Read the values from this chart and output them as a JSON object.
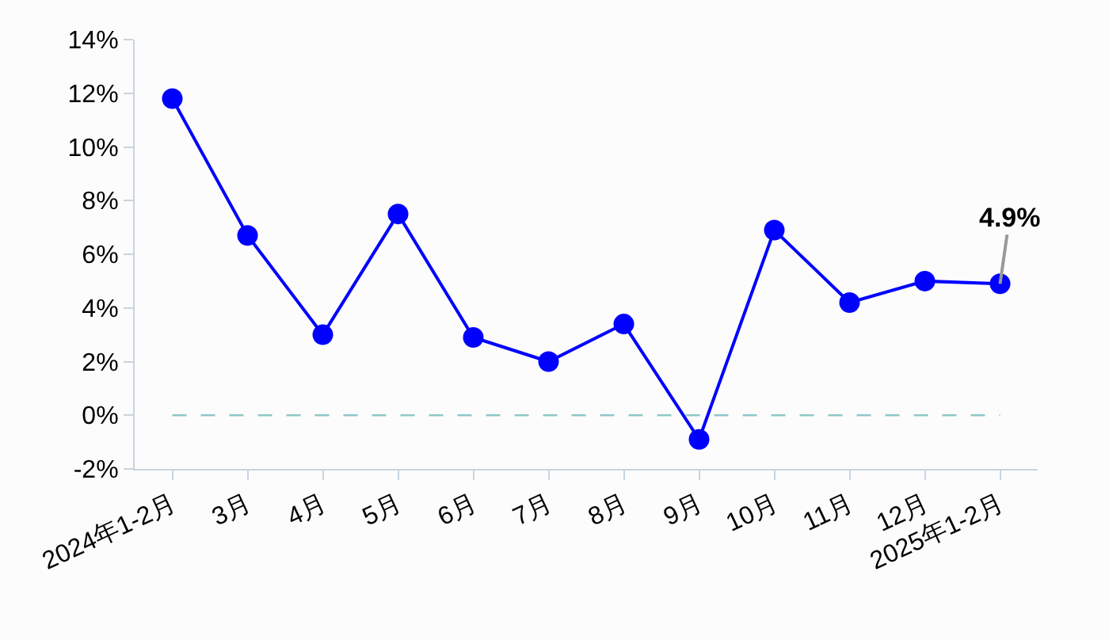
{
  "chart_data": {
    "type": "line",
    "categories": [
      "2024年1-2月",
      "3月",
      "4月",
      "5月",
      "6月",
      "7月",
      "8月",
      "9月",
      "10月",
      "11月",
      "12月",
      "2025年1-2月"
    ],
    "series": [
      {
        "color": "#0000ff",
        "values": [
          11.8,
          6.7,
          3.0,
          7.5,
          2.9,
          2.0,
          3.4,
          -0.9,
          6.9,
          4.2,
          5.0,
          4.9
        ]
      }
    ],
    "ylim": [
      -2,
      14
    ],
    "yticks": [
      {
        "value": -2,
        "label": "-2%"
      },
      {
        "value": 0,
        "label": "0%"
      },
      {
        "value": 2,
        "label": "2%"
      },
      {
        "value": 4,
        "label": "4%"
      },
      {
        "value": 6,
        "label": "6%"
      },
      {
        "value": 8,
        "label": "8%"
      },
      {
        "value": 10,
        "label": "10%"
      },
      {
        "value": 12,
        "label": "12%"
      },
      {
        "value": 14,
        "label": "14%"
      }
    ],
    "ref_lines": [
      {
        "axis": "y",
        "value": 0,
        "color": "#8fc7c7",
        "line_style": "dashed"
      }
    ],
    "annotations": [
      {
        "text": "4.9%",
        "x": "2025年1-2月",
        "y": 4.9
      }
    ],
    "grid": false,
    "marker": "circle",
    "line_style": "solid"
  }
}
